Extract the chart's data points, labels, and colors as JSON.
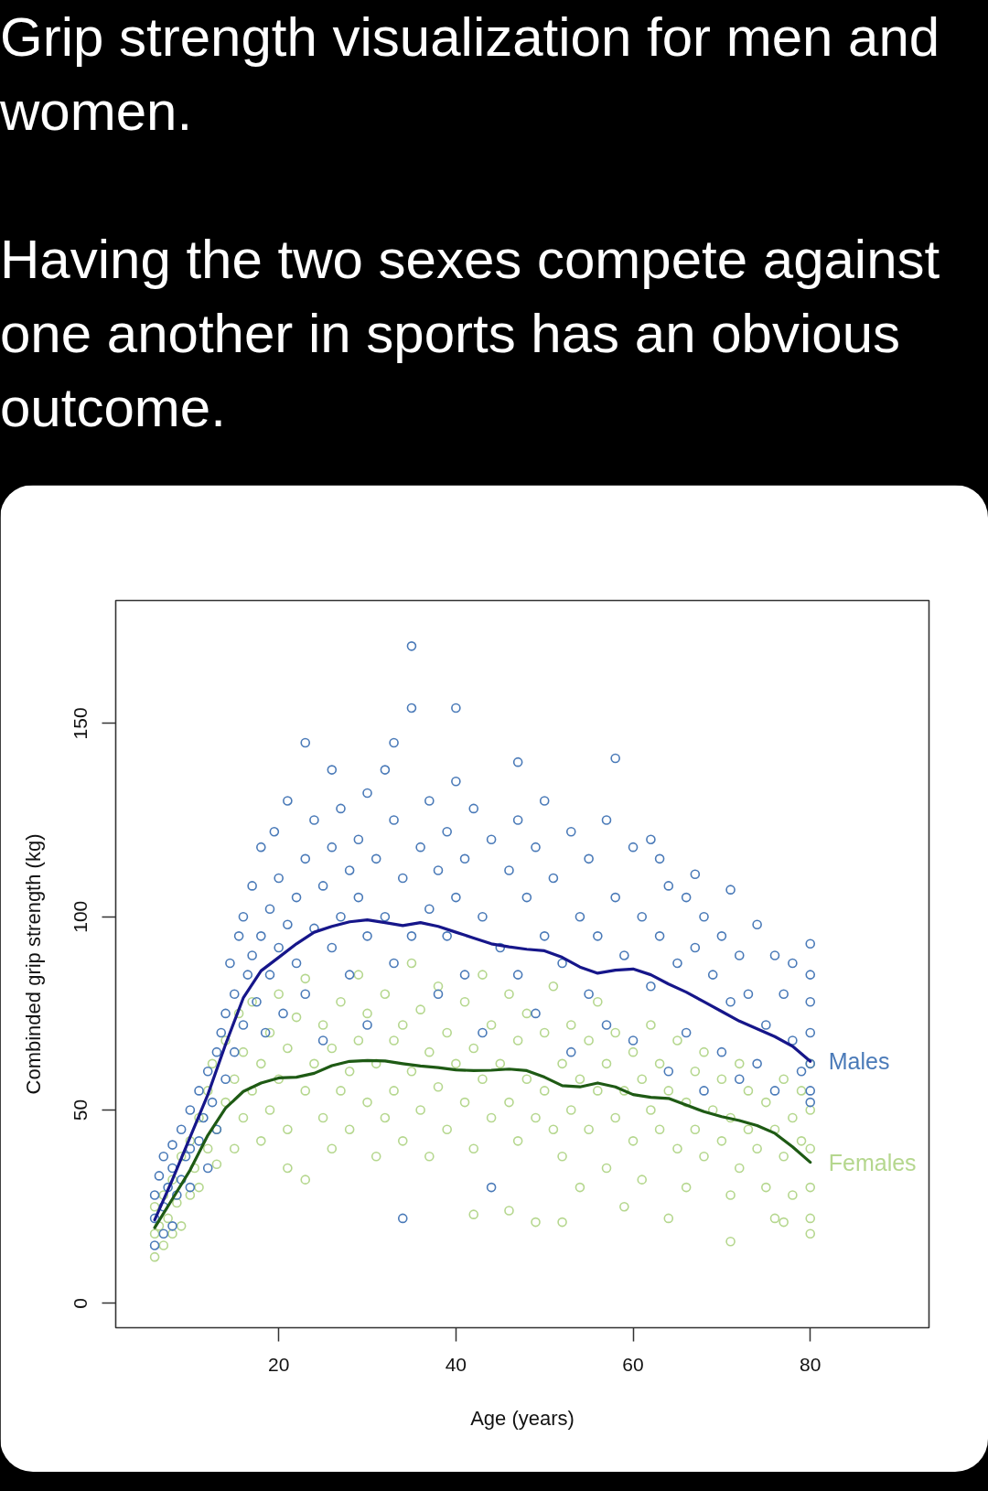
{
  "chart_data": {
    "type": "scatter",
    "title": "Grip strength visualization for men and women.",
    "subtitle": "Having the two sexes compete against one another in sports has an obvious outcome.",
    "xlabel": "Age (years)",
    "ylabel": "Combinded grip strength (kg)",
    "xlim": [
      1.6,
      93.4
    ],
    "ylim": [
      -6.3,
      181.8
    ],
    "xticks": [
      20,
      40,
      60,
      80
    ],
    "yticks": [
      0,
      50,
      100,
      150
    ],
    "marker": "circle",
    "series": [
      {
        "name": "Females",
        "color": "#b5d78e",
        "x": [
          6,
          6,
          6,
          6.5,
          7,
          7,
          7.5,
          8,
          8,
          8.5,
          9,
          9,
          10,
          10,
          10.5,
          11,
          11,
          12,
          12,
          12.5,
          13,
          13,
          14,
          14,
          15,
          15,
          15.5,
          16,
          16,
          17,
          17,
          18,
          18,
          19,
          19,
          20,
          20,
          21,
          21,
          21,
          22,
          23,
          23,
          23,
          24,
          25,
          25,
          26,
          26,
          27,
          27,
          28,
          28,
          29,
          29,
          30,
          30,
          31,
          31,
          32,
          32,
          33,
          33,
          34,
          34,
          35,
          35,
          36,
          36,
          37,
          37,
          38,
          38,
          39,
          39,
          40,
          42,
          41,
          41,
          42,
          42,
          43,
          43,
          44,
          44,
          45,
          46,
          46,
          46,
          47,
          47,
          48,
          48,
          49,
          49,
          50,
          50,
          51,
          51,
          52,
          52,
          52,
          53,
          53,
          54,
          54,
          55,
          55,
          56,
          56,
          57,
          57,
          58,
          58,
          59,
          59,
          60,
          60,
          61,
          61,
          62,
          62,
          63,
          63,
          64,
          64,
          65,
          65,
          66,
          66,
          67,
          67,
          68,
          68,
          69,
          77,
          70,
          70,
          71,
          71,
          72,
          72,
          73,
          73,
          74,
          71,
          75,
          75,
          76,
          76,
          77,
          77,
          78,
          78,
          79,
          79,
          80,
          80,
          80,
          80,
          80,
          80
        ],
        "values": [
          12,
          18,
          25,
          20,
          15,
          28,
          22,
          18,
          32,
          26,
          20,
          38,
          28,
          42,
          35,
          48,
          30,
          40,
          55,
          62,
          45,
          36,
          52,
          68,
          40,
          58,
          75,
          48,
          65,
          55,
          78,
          42,
          62,
          70,
          50,
          80,
          58,
          45,
          66,
          35,
          74,
          55,
          84,
          32,
          62,
          48,
          72,
          66,
          40,
          78,
          55,
          60,
          45,
          85,
          68,
          52,
          75,
          62,
          38,
          80,
          48,
          68,
          55,
          72,
          42,
          60,
          88,
          50,
          76,
          65,
          38,
          82,
          56,
          45,
          70,
          62,
          23,
          78,
          52,
          66,
          40,
          85,
          58,
          48,
          72,
          62,
          24,
          80,
          52,
          68,
          42,
          75,
          58,
          48,
          21,
          70,
          55,
          82,
          45,
          62,
          38,
          21,
          72,
          50,
          58,
          30,
          68,
          45,
          78,
          55,
          35,
          62,
          70,
          48,
          55,
          25,
          65,
          42,
          58,
          32,
          72,
          50,
          45,
          62,
          55,
          22,
          68,
          40,
          52,
          30,
          60,
          45,
          38,
          65,
          50,
          21,
          58,
          42,
          48,
          28,
          62,
          35,
          45,
          55,
          40,
          16,
          52,
          30,
          45,
          22,
          58,
          38,
          48,
          28,
          42,
          55,
          62,
          50,
          40,
          30,
          22,
          18
        ]
      },
      {
        "name": "Males",
        "color": "#4a7ab8",
        "x": [
          6,
          6,
          6,
          6.5,
          7,
          7,
          7,
          7.5,
          8,
          8,
          8,
          8.5,
          9,
          9,
          9.5,
          10,
          10,
          10,
          11,
          11,
          11.5,
          12,
          12,
          12.5,
          13,
          13,
          13.5,
          14,
          14,
          14.5,
          15,
          15,
          15.5,
          16,
          16,
          16.5,
          17,
          17,
          17.5,
          18,
          18,
          18.5,
          19,
          19,
          19.5,
          20,
          20,
          20.5,
          21,
          21,
          22,
          22,
          23,
          23,
          23,
          24,
          24,
          25,
          25,
          26,
          26,
          26,
          27,
          27,
          28,
          28,
          29,
          29,
          30,
          30,
          30,
          31,
          32,
          32,
          33,
          33,
          33,
          34,
          34,
          35,
          35,
          35,
          36,
          37,
          37,
          38,
          38,
          39,
          39,
          40,
          40,
          40,
          41,
          41,
          42,
          43,
          43,
          44,
          44,
          45,
          46,
          47,
          47,
          47,
          48,
          49,
          49,
          50,
          50,
          51,
          52,
          53,
          53,
          54,
          55,
          55,
          56,
          57,
          57,
          58,
          58,
          59,
          60,
          60,
          61,
          62,
          62,
          63,
          63,
          64,
          64,
          65,
          66,
          66,
          67,
          67,
          68,
          68,
          69,
          70,
          70,
          71,
          71,
          72,
          72,
          73,
          74,
          74,
          75,
          76,
          76,
          77,
          78,
          78,
          79,
          80,
          80,
          80,
          80,
          80,
          80,
          80
        ],
        "values": [
          15,
          22,
          28,
          33,
          18,
          25,
          38,
          30,
          20,
          35,
          41,
          28,
          32,
          45,
          38,
          30,
          40,
          50,
          42,
          55,
          48,
          60,
          35,
          52,
          65,
          45,
          70,
          58,
          75,
          88,
          65,
          80,
          95,
          72,
          100,
          85,
          90,
          108,
          78,
          118,
          95,
          70,
          102,
          85,
          122,
          110,
          92,
          75,
          130,
          98,
          105,
          88,
          145,
          115,
          80,
          125,
          97,
          108,
          68,
          138,
          118,
          92,
          128,
          100,
          85,
          112,
          120,
          105,
          132,
          95,
          72,
          115,
          138,
          100,
          145,
          125,
          88,
          110,
          22,
          170,
          154,
          95,
          118,
          130,
          102,
          80,
          112,
          122,
          95,
          154,
          135,
          105,
          115,
          85,
          128,
          100,
          70,
          120,
          30,
          92,
          112,
          140,
          125,
          85,
          105,
          118,
          75,
          130,
          95,
          110,
          88,
          122,
          65,
          100,
          115,
          80,
          95,
          125,
          72,
          141,
          105,
          90,
          118,
          68,
          100,
          120,
          82,
          95,
          115,
          108,
          60,
          88,
          105,
          70,
          111,
          92,
          100,
          55,
          85,
          95,
          65,
          107,
          78,
          90,
          58,
          80,
          98,
          62,
          72,
          90,
          55,
          80,
          68,
          88,
          60,
          93,
          85,
          78,
          70,
          62,
          55,
          52
        ]
      },
      {
        "type": "line",
        "marker": "none",
        "color": "#1e5a14",
        "x": [
          6,
          8,
          10,
          12,
          14,
          16,
          18,
          20,
          22,
          24,
          26,
          28,
          30,
          32,
          34,
          36,
          38,
          40,
          42,
          44,
          46,
          48,
          50,
          52,
          54,
          56,
          58,
          60,
          62,
          64,
          66,
          68,
          70,
          72,
          74,
          76,
          78,
          80
        ],
        "values": [
          19.6,
          27,
          34.5,
          43.5,
          50.5,
          54.8,
          57,
          58.3,
          58.5,
          59.5,
          61.5,
          62.6,
          62.8,
          62.7,
          62,
          61.4,
          61,
          60.4,
          60.2,
          60.3,
          60.6,
          60.2,
          58.5,
          56.3,
          56,
          57,
          56,
          54,
          53.3,
          53,
          51.3,
          49.6,
          48.3,
          47.3,
          46,
          44,
          40.5,
          36.5
        ]
      },
      {
        "type": "line",
        "marker": "none",
        "color": "#16168a",
        "x": [
          6,
          8,
          10,
          12,
          14,
          16,
          18,
          20,
          22,
          24,
          26,
          28,
          30,
          32,
          34,
          36,
          38,
          40,
          42,
          44,
          46,
          48,
          50,
          52,
          54,
          56,
          58,
          60,
          62,
          64,
          66,
          68,
          70,
          72,
          74,
          76,
          78,
          80
        ],
        "values": [
          21.6,
          32,
          43,
          54,
          67,
          79,
          86,
          89.5,
          93,
          96,
          97.5,
          98.7,
          99.2,
          98.5,
          97.7,
          98.5,
          97.5,
          96,
          94.5,
          93,
          92.2,
          91.6,
          91.2,
          89.5,
          87,
          85.4,
          86.2,
          86.5,
          85,
          82.6,
          80.5,
          78,
          75.5,
          73,
          71,
          69,
          66.5,
          62.6
        ]
      }
    ]
  }
}
